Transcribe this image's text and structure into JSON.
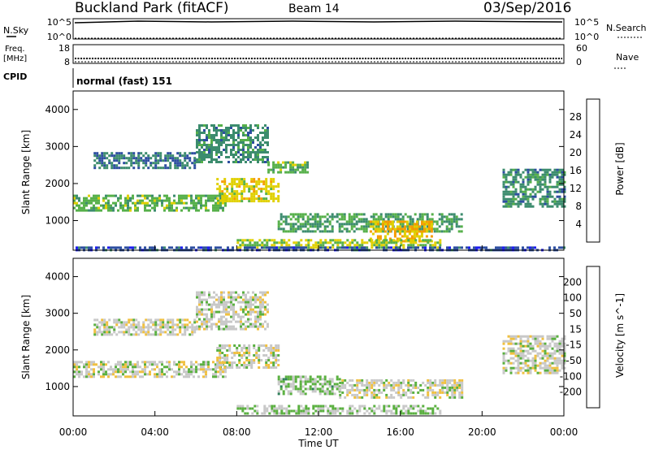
{
  "header": {
    "station": "Buckland Park (fitACF)",
    "beam": "Beam 14",
    "date": "03/Sep/2016"
  },
  "panels": {
    "nsky": {
      "label": "N.Sky",
      "ticks": [
        "10^5",
        "10^0"
      ],
      "right_ticks": [
        "10^5",
        "10^0"
      ],
      "right_label": "N.Search"
    },
    "freq": {
      "label_line1": "Freq.",
      "label_line2": "[MHz]",
      "ticks": [
        "18",
        "8"
      ],
      "right_ticks": [
        "60",
        "0"
      ],
      "right_label": "Nave"
    },
    "cpid": {
      "label": "CPID",
      "text": "normal (fast) 151"
    }
  },
  "colors": {
    "power": [
      "#1c1cf0",
      "#2d4ea0",
      "#3c8c6e",
      "#56b04a",
      "#e0d000",
      "#f59c00",
      "#f56e00",
      "#e02020"
    ],
    "velocity": [
      "#e00000",
      "#f05000",
      "#f08c00",
      "#f0c040",
      "#c8c8c8",
      "#5ab040",
      "#30805a",
      "#204080",
      "#1010a0"
    ]
  },
  "chart_data": [
    {
      "type": "heatmap",
      "name": "power",
      "ylabel": "Slant Range [km]",
      "yticks": [
        "1000",
        "2000",
        "3000",
        "4000"
      ],
      "ylim": [
        200,
        4500
      ],
      "xlim_hours": [
        0,
        24
      ],
      "colorbar": {
        "label": "Power [dB]",
        "ticks": [
          "4",
          "8",
          "12",
          "16",
          "20",
          "24",
          "28"
        ],
        "range": [
          0,
          32
        ]
      },
      "regions": [
        {
          "t": [
            0.0,
            7.5
          ],
          "r": [
            1250,
            1700
          ],
          "value": 14
        },
        {
          "t": [
            7.0,
            10.0
          ],
          "r": [
            1550,
            2150
          ],
          "value": 18
        },
        {
          "t": [
            1.0,
            6.0
          ],
          "r": [
            2450,
            2850
          ],
          "value": 8
        },
        {
          "t": [
            6.0,
            9.5
          ],
          "r": [
            2600,
            3600
          ],
          "value": 10
        },
        {
          "t": [
            9.5,
            11.5
          ],
          "r": [
            2300,
            2600
          ],
          "value": 14
        },
        {
          "t": [
            10.0,
            19.0
          ],
          "r": [
            700,
            1200
          ],
          "value": 12
        },
        {
          "t": [
            14.5,
            17.5
          ],
          "r": [
            450,
            1000
          ],
          "value": 20
        },
        {
          "t": [
            8.0,
            18.0
          ],
          "r": [
            280,
            500
          ],
          "value": 16
        },
        {
          "t": [
            21.0,
            24.0
          ],
          "r": [
            1400,
            2400
          ],
          "value": 10
        },
        {
          "t": [
            0.0,
            24.0
          ],
          "r": [
            200,
            300
          ],
          "value": 6
        }
      ]
    },
    {
      "type": "heatmap",
      "name": "velocity",
      "ylabel": "Slant Range [km]",
      "yticks": [
        "1000",
        "2000",
        "3000",
        "4000"
      ],
      "ylim": [
        200,
        4500
      ],
      "xlim_hours": [
        0,
        24
      ],
      "xlabel": "Time UT",
      "xticks": [
        "00:00",
        "04:00",
        "08:00",
        "12:00",
        "16:00",
        "20:00",
        "00:00"
      ],
      "colorbar": {
        "label": "Velocity [m s^-1]",
        "ticks": [
          "-200",
          "-100",
          "-50",
          "-15",
          "15",
          "50",
          "100",
          "200"
        ],
        "range": [
          -250,
          250
        ]
      },
      "regions": [
        {
          "t": [
            0.0,
            7.5
          ],
          "r": [
            1250,
            1700
          ],
          "value": 0
        },
        {
          "t": [
            7.0,
            10.0
          ],
          "r": [
            1550,
            2150
          ],
          "value": 0
        },
        {
          "t": [
            1.0,
            6.0
          ],
          "r": [
            2450,
            2850
          ],
          "value": 0
        },
        {
          "t": [
            6.0,
            9.5
          ],
          "r": [
            2600,
            3600
          ],
          "value": 0
        },
        {
          "t": [
            10.0,
            13.0
          ],
          "r": [
            800,
            1300
          ],
          "value": 40
        },
        {
          "t": [
            13.0,
            19.0
          ],
          "r": [
            700,
            1200
          ],
          "value": 0
        },
        {
          "t": [
            8.0,
            18.0
          ],
          "r": [
            280,
            500
          ],
          "value": 30
        },
        {
          "t": [
            21.0,
            24.0
          ],
          "r": [
            1400,
            2400
          ],
          "value": 0
        }
      ]
    }
  ]
}
